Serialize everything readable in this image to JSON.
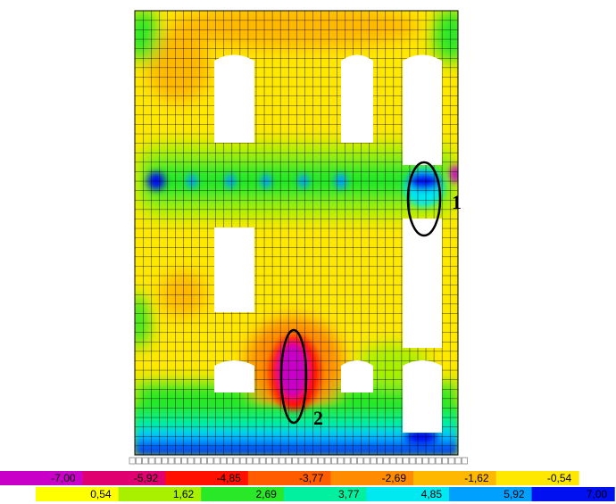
{
  "legend": {
    "negative": [
      {
        "label": "-7,00",
        "color": "#c800c8"
      },
      {
        "label": "-5,92",
        "color": "#e00070"
      },
      {
        "label": "-4,85",
        "color": "#ff1000"
      },
      {
        "label": "-3,77",
        "color": "#ff5c00"
      },
      {
        "label": "-2,69",
        "color": "#ff8c00"
      },
      {
        "label": "-1,62",
        "color": "#ffb800"
      },
      {
        "label": "-0,54",
        "color": "#ffe800"
      }
    ],
    "positive": [
      {
        "label": "0,54",
        "color": "#ffff00"
      },
      {
        "label": "1,62",
        "color": "#a8f000"
      },
      {
        "label": "2,69",
        "color": "#28e828"
      },
      {
        "label": "3,77",
        "color": "#00f0a0"
      },
      {
        "label": "4,85",
        "color": "#00e8f0"
      },
      {
        "label": "5,92",
        "color": "#00a0ff"
      },
      {
        "label": "7,00",
        "color": "#0010f0"
      }
    ]
  },
  "annotations": [
    "1",
    "2"
  ]
}
